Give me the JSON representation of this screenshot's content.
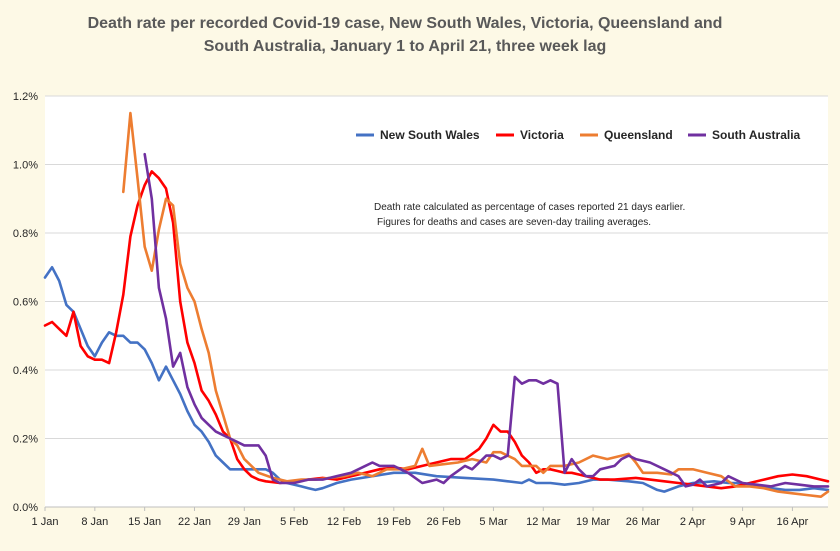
{
  "chart_data": {
    "type": "line",
    "title_lines": [
      "Death rate per recorded Covid-19 case, New South Wales, Victoria, Queensland and",
      "South Australia, January 1 to April 21, three week lag"
    ],
    "xlabel": "",
    "ylabel": "",
    "x_ticks": [
      "1 Jan",
      "8 Jan",
      "15 Jan",
      "22 Jan",
      "29 Jan",
      "5 Feb",
      "12 Feb",
      "19 Feb",
      "26 Feb",
      "5 Mar",
      "12 Mar",
      "19 Mar",
      "26 Mar",
      "2 Apr",
      "9 Apr",
      "16 Apr"
    ],
    "y_ticks": [
      "0.0%",
      "0.2%",
      "0.4%",
      "0.6%",
      "0.8%",
      "1.0%",
      "1.2%"
    ],
    "ylim": [
      0,
      1.2
    ],
    "x_range_days": [
      1,
      111
    ],
    "grid": "horizontal",
    "legend_position": "top-right",
    "annotation": [
      "Death rate calculated as percentage of cases reported 21 days earlier.",
      "Figures for deaths and cases are seven-day trailing averages."
    ],
    "series": [
      {
        "name": "New South Wales",
        "color": "#4472c4",
        "points": [
          [
            1,
            0.67
          ],
          [
            2,
            0.7
          ],
          [
            3,
            0.66
          ],
          [
            4,
            0.59
          ],
          [
            5,
            0.57
          ],
          [
            6,
            0.52
          ],
          [
            7,
            0.47
          ],
          [
            8,
            0.44
          ],
          [
            9,
            0.48
          ],
          [
            10,
            0.51
          ],
          [
            11,
            0.5
          ],
          [
            12,
            0.5
          ],
          [
            13,
            0.48
          ],
          [
            14,
            0.48
          ],
          [
            15,
            0.46
          ],
          [
            16,
            0.42
          ],
          [
            17,
            0.37
          ],
          [
            18,
            0.41
          ],
          [
            19,
            0.37
          ],
          [
            20,
            0.33
          ],
          [
            21,
            0.28
          ],
          [
            22,
            0.24
          ],
          [
            23,
            0.22
          ],
          [
            24,
            0.19
          ],
          [
            25,
            0.15
          ],
          [
            26,
            0.13
          ],
          [
            27,
            0.11
          ],
          [
            28,
            0.11
          ],
          [
            30,
            0.11
          ],
          [
            32,
            0.11
          ],
          [
            33,
            0.1
          ],
          [
            34,
            0.08
          ],
          [
            35,
            0.07
          ],
          [
            37,
            0.06
          ],
          [
            38,
            0.055
          ],
          [
            39,
            0.05
          ],
          [
            40,
            0.055
          ],
          [
            42,
            0.07
          ],
          [
            44,
            0.08
          ],
          [
            47,
            0.09
          ],
          [
            50,
            0.1
          ],
          [
            53,
            0.1
          ],
          [
            56,
            0.09
          ],
          [
            60,
            0.085
          ],
          [
            64,
            0.08
          ],
          [
            66,
            0.075
          ],
          [
            68,
            0.07
          ],
          [
            69,
            0.08
          ],
          [
            70,
            0.07
          ],
          [
            72,
            0.07
          ],
          [
            74,
            0.065
          ],
          [
            76,
            0.07
          ],
          [
            78,
            0.08
          ],
          [
            80,
            0.08
          ],
          [
            83,
            0.075
          ],
          [
            85,
            0.07
          ],
          [
            87,
            0.05
          ],
          [
            88,
            0.045
          ],
          [
            90,
            0.06
          ],
          [
            92,
            0.07
          ],
          [
            95,
            0.075
          ],
          [
            97,
            0.07
          ],
          [
            99,
            0.07
          ],
          [
            101,
            0.06
          ],
          [
            103,
            0.055
          ],
          [
            105,
            0.05
          ],
          [
            107,
            0.05
          ],
          [
            109,
            0.055
          ],
          [
            111,
            0.05
          ]
        ]
      },
      {
        "name": "Victoria",
        "color": "#ff0000",
        "points": [
          [
            1,
            0.53
          ],
          [
            2,
            0.54
          ],
          [
            3,
            0.52
          ],
          [
            4,
            0.5
          ],
          [
            5,
            0.57
          ],
          [
            6,
            0.47
          ],
          [
            7,
            0.44
          ],
          [
            8,
            0.43
          ],
          [
            9,
            0.43
          ],
          [
            10,
            0.42
          ],
          [
            11,
            0.51
          ],
          [
            12,
            0.62
          ],
          [
            13,
            0.79
          ],
          [
            14,
            0.88
          ],
          [
            15,
            0.94
          ],
          [
            16,
            0.98
          ],
          [
            17,
            0.96
          ],
          [
            18,
            0.93
          ],
          [
            19,
            0.83
          ],
          [
            20,
            0.6
          ],
          [
            21,
            0.48
          ],
          [
            22,
            0.42
          ],
          [
            23,
            0.34
          ],
          [
            24,
            0.31
          ],
          [
            25,
            0.27
          ],
          [
            26,
            0.22
          ],
          [
            27,
            0.2
          ],
          [
            28,
            0.14
          ],
          [
            29,
            0.11
          ],
          [
            30,
            0.09
          ],
          [
            31,
            0.08
          ],
          [
            32,
            0.075
          ],
          [
            34,
            0.07
          ],
          [
            36,
            0.075
          ],
          [
            38,
            0.08
          ],
          [
            40,
            0.085
          ],
          [
            42,
            0.08
          ],
          [
            44,
            0.09
          ],
          [
            46,
            0.1
          ],
          [
            48,
            0.11
          ],
          [
            50,
            0.115
          ],
          [
            52,
            0.11
          ],
          [
            54,
            0.12
          ],
          [
            56,
            0.13
          ],
          [
            58,
            0.14
          ],
          [
            60,
            0.14
          ],
          [
            62,
            0.17
          ],
          [
            63,
            0.2
          ],
          [
            64,
            0.24
          ],
          [
            65,
            0.22
          ],
          [
            66,
            0.22
          ],
          [
            67,
            0.19
          ],
          [
            68,
            0.15
          ],
          [
            69,
            0.13
          ],
          [
            70,
            0.1
          ],
          [
            71,
            0.11
          ],
          [
            72,
            0.11
          ],
          [
            73,
            0.105
          ],
          [
            74,
            0.1
          ],
          [
            75,
            0.1
          ],
          [
            76,
            0.095
          ],
          [
            77,
            0.09
          ],
          [
            79,
            0.08
          ],
          [
            81,
            0.08
          ],
          [
            84,
            0.085
          ],
          [
            86,
            0.08
          ],
          [
            88,
            0.075
          ],
          [
            90,
            0.07
          ],
          [
            92,
            0.065
          ],
          [
            94,
            0.06
          ],
          [
            96,
            0.055
          ],
          [
            98,
            0.06
          ],
          [
            100,
            0.07
          ],
          [
            102,
            0.08
          ],
          [
            104,
            0.09
          ],
          [
            106,
            0.095
          ],
          [
            108,
            0.09
          ],
          [
            110,
            0.08
          ],
          [
            111,
            0.075
          ]
        ]
      },
      {
        "name": "Queensland",
        "color": "#ed7d31",
        "points": [
          [
            12,
            0.92
          ],
          [
            13,
            1.15
          ],
          [
            14,
            0.96
          ],
          [
            15,
            0.76
          ],
          [
            16,
            0.69
          ],
          [
            17,
            0.81
          ],
          [
            18,
            0.9
          ],
          [
            19,
            0.88
          ],
          [
            20,
            0.71
          ],
          [
            21,
            0.64
          ],
          [
            22,
            0.6
          ],
          [
            23,
            0.52
          ],
          [
            24,
            0.45
          ],
          [
            25,
            0.34
          ],
          [
            26,
            0.27
          ],
          [
            27,
            0.2
          ],
          [
            28,
            0.18
          ],
          [
            29,
            0.14
          ],
          [
            30,
            0.12
          ],
          [
            31,
            0.1
          ],
          [
            33,
            0.085
          ],
          [
            35,
            0.075
          ],
          [
            37,
            0.08
          ],
          [
            39,
            0.08
          ],
          [
            41,
            0.085
          ],
          [
            43,
            0.09
          ],
          [
            45,
            0.1
          ],
          [
            47,
            0.09
          ],
          [
            49,
            0.11
          ],
          [
            51,
            0.11
          ],
          [
            53,
            0.12
          ],
          [
            54,
            0.17
          ],
          [
            55,
            0.12
          ],
          [
            57,
            0.125
          ],
          [
            59,
            0.13
          ],
          [
            61,
            0.14
          ],
          [
            63,
            0.13
          ],
          [
            64,
            0.16
          ],
          [
            65,
            0.16
          ],
          [
            67,
            0.14
          ],
          [
            68,
            0.12
          ],
          [
            70,
            0.12
          ],
          [
            71,
            0.1
          ],
          [
            72,
            0.12
          ],
          [
            74,
            0.12
          ],
          [
            76,
            0.13
          ],
          [
            78,
            0.15
          ],
          [
            80,
            0.14
          ],
          [
            82,
            0.15
          ],
          [
            83,
            0.155
          ],
          [
            84,
            0.13
          ],
          [
            85,
            0.1
          ],
          [
            87,
            0.1
          ],
          [
            89,
            0.095
          ],
          [
            90,
            0.11
          ],
          [
            92,
            0.11
          ],
          [
            94,
            0.1
          ],
          [
            96,
            0.09
          ],
          [
            98,
            0.06
          ],
          [
            100,
            0.06
          ],
          [
            102,
            0.055
          ],
          [
            104,
            0.045
          ],
          [
            106,
            0.04
          ],
          [
            108,
            0.035
          ],
          [
            110,
            0.03
          ],
          [
            111,
            0.045
          ]
        ]
      },
      {
        "name": "South Australia",
        "color": "#7030a0",
        "points": [
          [
            15,
            1.03
          ],
          [
            16,
            0.9
          ],
          [
            17,
            0.64
          ],
          [
            18,
            0.55
          ],
          [
            19,
            0.41
          ],
          [
            20,
            0.45
          ],
          [
            21,
            0.35
          ],
          [
            22,
            0.3
          ],
          [
            23,
            0.26
          ],
          [
            24,
            0.24
          ],
          [
            25,
            0.22
          ],
          [
            26,
            0.21
          ],
          [
            27,
            0.2
          ],
          [
            28,
            0.19
          ],
          [
            29,
            0.18
          ],
          [
            30,
            0.18
          ],
          [
            31,
            0.18
          ],
          [
            32,
            0.15
          ],
          [
            33,
            0.08
          ],
          [
            34,
            0.07
          ],
          [
            36,
            0.07
          ],
          [
            38,
            0.08
          ],
          [
            40,
            0.08
          ],
          [
            42,
            0.09
          ],
          [
            44,
            0.1
          ],
          [
            46,
            0.12
          ],
          [
            47,
            0.13
          ],
          [
            48,
            0.12
          ],
          [
            50,
            0.12
          ],
          [
            52,
            0.1
          ],
          [
            54,
            0.07
          ],
          [
            55,
            0.075
          ],
          [
            56,
            0.08
          ],
          [
            57,
            0.07
          ],
          [
            58,
            0.09
          ],
          [
            60,
            0.12
          ],
          [
            61,
            0.11
          ],
          [
            62,
            0.13
          ],
          [
            63,
            0.15
          ],
          [
            64,
            0.15
          ],
          [
            65,
            0.14
          ],
          [
            66,
            0.15
          ],
          [
            67,
            0.38
          ],
          [
            68,
            0.36
          ],
          [
            69,
            0.37
          ],
          [
            70,
            0.37
          ],
          [
            71,
            0.36
          ],
          [
            72,
            0.37
          ],
          [
            73,
            0.36
          ],
          [
            74,
            0.1
          ],
          [
            75,
            0.14
          ],
          [
            76,
            0.11
          ],
          [
            77,
            0.09
          ],
          [
            78,
            0.09
          ],
          [
            79,
            0.11
          ],
          [
            81,
            0.12
          ],
          [
            82,
            0.14
          ],
          [
            83,
            0.15
          ],
          [
            84,
            0.14
          ],
          [
            86,
            0.13
          ],
          [
            88,
            0.11
          ],
          [
            90,
            0.09
          ],
          [
            91,
            0.06
          ],
          [
            92,
            0.065
          ],
          [
            93,
            0.08
          ],
          [
            94,
            0.06
          ],
          [
            96,
            0.07
          ],
          [
            97,
            0.09
          ],
          [
            99,
            0.07
          ],
          [
            101,
            0.065
          ],
          [
            103,
            0.06
          ],
          [
            105,
            0.07
          ],
          [
            107,
            0.065
          ],
          [
            109,
            0.06
          ],
          [
            111,
            0.06
          ]
        ]
      }
    ]
  }
}
